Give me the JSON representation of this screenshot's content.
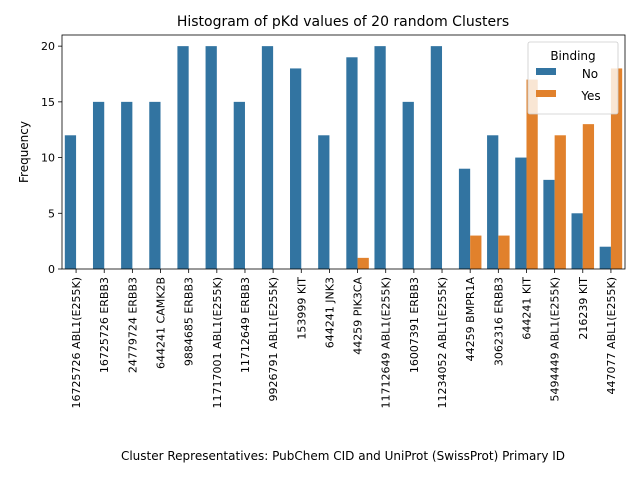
{
  "chart_data": {
    "type": "bar",
    "title": "Histogram of pKd values of 20 random Clusters",
    "xlabel": "Cluster Representatives: PubChem CID and UniProt (SwissProt) Primary ID",
    "ylabel": "Frequency",
    "ylim": [
      0,
      21
    ],
    "yticks": [
      0,
      5,
      10,
      15,
      20
    ],
    "grid": false,
    "legend": {
      "title": "Binding",
      "placement": "top-right"
    },
    "categories": [
      "16725726 ABL1(E255K)",
      "16725726 ERBB3",
      "24779724 ERBB3",
      "644241 CAMK2B",
      "9884685 ERBB3",
      "11717001 ABL1(E255K)",
      "11712649 ERBB3",
      "9926791 ABL1(E255K)",
      "153999 KIT",
      "644241 JNK3",
      "44259 PIK3CA",
      "11712649 ABL1(E255K)",
      "16007391 ERBB3",
      "11234052 ABL1(E255K)",
      "44259 BMPR1A",
      "3062316 ERBB3",
      "644241 KIT",
      "5494449 ABL1(E255K)",
      "216239 KIT",
      "447077 ABL1(E255K)"
    ],
    "series": [
      {
        "name": "No",
        "color": "#3274a1",
        "values": [
          12,
          15,
          15,
          15,
          20,
          20,
          15,
          20,
          18,
          12,
          19,
          20,
          15,
          20,
          9,
          12,
          10,
          8,
          5,
          2
        ]
      },
      {
        "name": "Yes",
        "color": "#e1812c",
        "values": [
          0,
          0,
          0,
          0,
          0,
          0,
          0,
          0,
          0,
          0,
          1,
          0,
          0,
          0,
          3,
          3,
          17,
          12,
          13,
          18
        ]
      }
    ]
  }
}
